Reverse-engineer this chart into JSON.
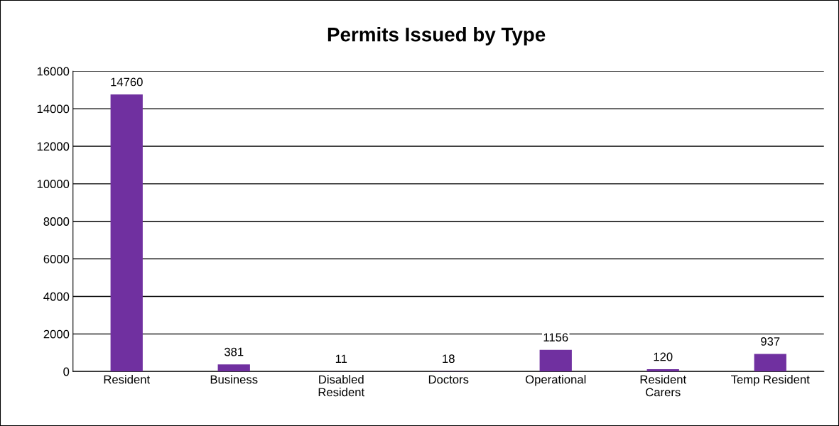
{
  "chart_data": {
    "type": "bar",
    "title": "Permits Issued by Type",
    "categories": [
      "Resident",
      "Business",
      "Disabled\nResident",
      "Doctors",
      "Operational",
      "Resident\nCarers",
      "Temp Resident"
    ],
    "values": [
      14760,
      381,
      11,
      18,
      1156,
      120,
      937
    ],
    "color": "#7030a0",
    "ylim": [
      0,
      16000
    ],
    "yticks": [
      0,
      2000,
      4000,
      6000,
      8000,
      10000,
      12000,
      14000,
      16000
    ],
    "grid": "y",
    "data_labels": true
  }
}
